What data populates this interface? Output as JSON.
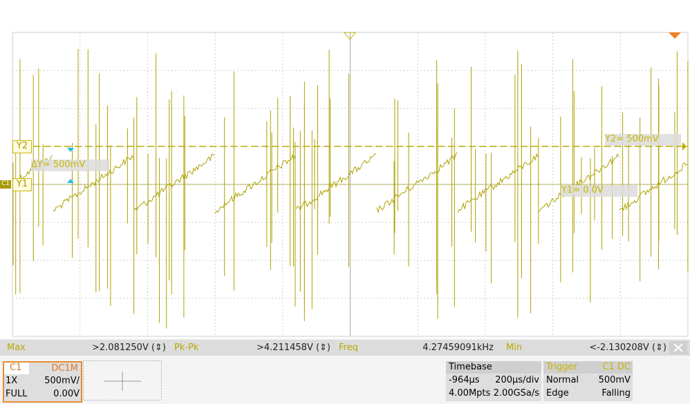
{
  "cursors": {
    "y2_tag": "Y2",
    "y1_tag": "Y1",
    "channel_tag": "C1",
    "delta": "ΔY= 500mV",
    "y2": "Y2= 500mV",
    "y1": "Y1= 0.0V"
  },
  "measurements": [
    {
      "label": "Max",
      "value": ">2.081250V (⇕)"
    },
    {
      "label": "Pk-Pk",
      "value": ">4.211458V (⇕)"
    },
    {
      "label": "Freq",
      "value": "4.27459091kHz"
    },
    {
      "label": "Min",
      "value": "<-2.130208V (⇕)"
    }
  ],
  "channel": {
    "name": "C1",
    "coupling": "DC1M",
    "probe": "1X",
    "scale": "500mV/",
    "bandwidth": "FULL",
    "offset": "0.00V"
  },
  "timebase": {
    "title": "Timebase",
    "delay": "-964µs",
    "scale": "200µs/div",
    "memory": "4.00Mpts",
    "sample_rate": "2.00GSa/s"
  },
  "trigger": {
    "title": "Trigger",
    "source": "C1 DC",
    "mode": "Normal",
    "level": "500mV",
    "type": "Edge",
    "slope": "Falling"
  }
}
